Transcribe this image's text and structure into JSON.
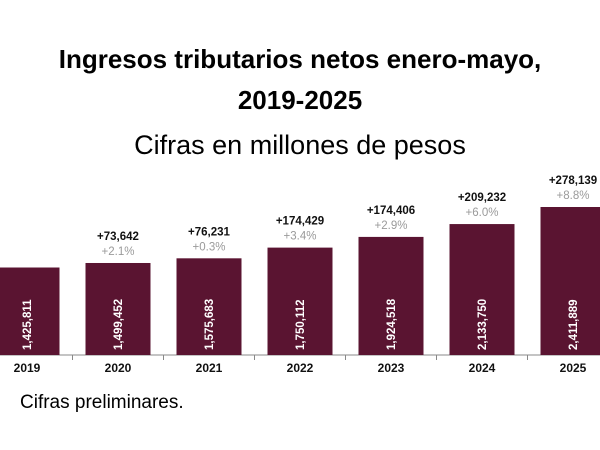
{
  "chart_data": {
    "type": "bar",
    "title": "Ingresos tributarios netos enero-mayo, 2019-2025",
    "title_lines": [
      "Ingresos tributarios netos enero-mayo,",
      "2019-2025"
    ],
    "subtitle": "Cifras en millones de pesos",
    "footnote": "Cifras preliminares.",
    "categories": [
      "2019",
      "2020",
      "2021",
      "2022",
      "2023",
      "2024",
      "2025"
    ],
    "values": [
      1425811,
      1499452,
      1575683,
      1750112,
      1924518,
      2133750,
      2411889
    ],
    "value_labels": [
      "1,425,811",
      "1,499,452",
      "1,575,683",
      "1,750,112",
      "1,924,518",
      "2,133,750",
      "2,411,889"
    ],
    "change_abs": [
      "",
      "+73,642",
      "+76,231",
      "+174,429",
      "+174,406",
      "+209,232",
      "+278,139"
    ],
    "change_pct": [
      "",
      "+2.1%",
      "+0.3%",
      "+3.4%",
      "+2.9%",
      "+6.0%",
      "+8.8%"
    ],
    "ylim": [
      0,
      2411889
    ],
    "grid": false,
    "legend": "none",
    "colors": {
      "bar": "#5a1431",
      "change_abs": "#111111",
      "change_pct": "#9a9a9a",
      "axis": "#888888"
    }
  }
}
